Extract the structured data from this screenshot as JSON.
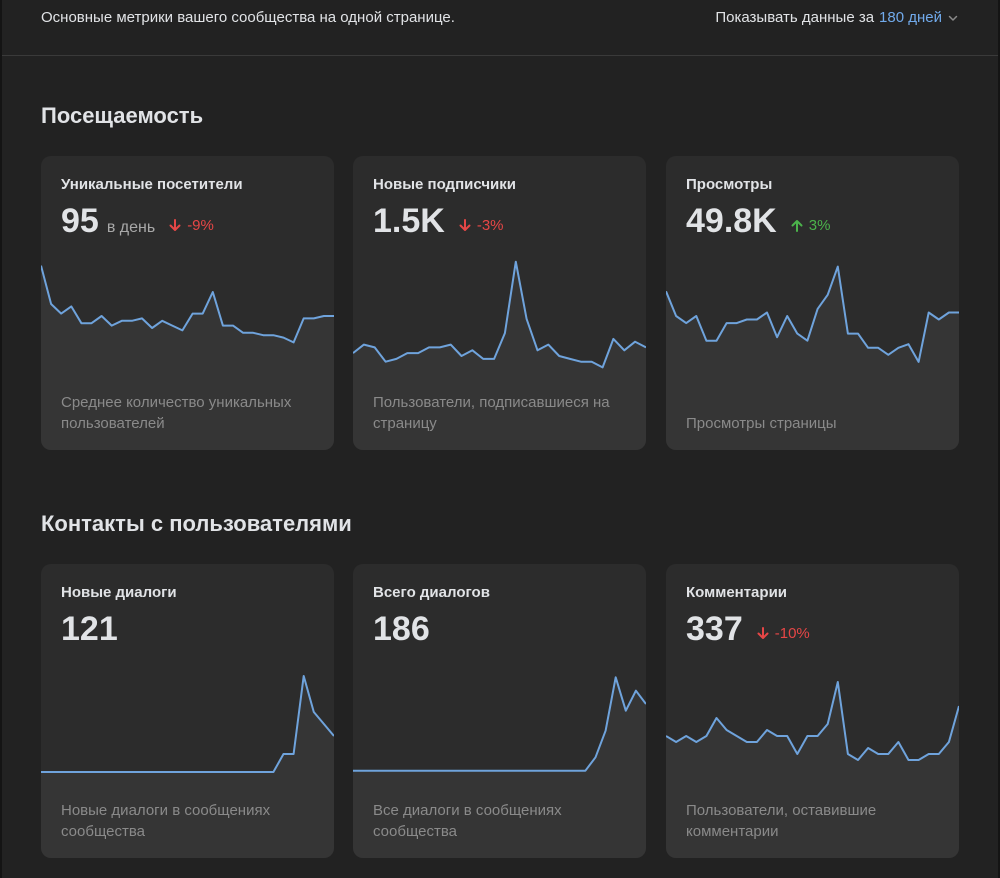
{
  "header": {
    "description": "Основные метрики вашего сообщества на одной странице.",
    "period_prefix": "Показывать данные за",
    "period_value": "180 дней",
    "period_icon": "chevron-down-icon"
  },
  "colors": {
    "accent": "#71aaeb",
    "down": "#e64646",
    "up": "#4bb34b",
    "line": "#6fa3dc"
  },
  "sections": [
    {
      "title": "Посещаемость",
      "cards": [
        {
          "title": "Уникальные посетители",
          "value": "95",
          "unit": "в день",
          "delta": "-9%",
          "direction": "down",
          "description": "Среднее количество уникальных пользователей"
        },
        {
          "title": "Новые подписчики",
          "value": "1.5K",
          "unit": "",
          "delta": "-3%",
          "direction": "down",
          "description": "Пользователи, подписавшиеся на страницу"
        },
        {
          "title": "Просмотры",
          "value": "49.8K",
          "unit": "",
          "delta": "3%",
          "direction": "up",
          "description": "Просмотры страницы"
        }
      ]
    },
    {
      "title": "Контакты с пользователями",
      "cards": [
        {
          "title": "Новые диалоги",
          "value": "121",
          "unit": "",
          "delta": "",
          "direction": "",
          "description": "Новые диалоги в сообщениях сообщества"
        },
        {
          "title": "Всего диалогов",
          "value": "186",
          "unit": "",
          "delta": "",
          "direction": "",
          "description": "Все диалоги в сообщениях сообщества"
        },
        {
          "title": "Комментарии",
          "value": "337",
          "unit": "",
          "delta": "-10%",
          "direction": "down",
          "description": "Пользователи, оставившие комментарии"
        }
      ]
    }
  ],
  "chart_data": [
    {
      "type": "area",
      "name": "Уникальные посетители",
      "values": [
        56,
        40,
        36,
        39,
        32,
        32,
        35,
        31,
        33,
        33,
        34,
        30,
        33,
        31,
        29,
        36,
        36,
        45,
        31,
        31,
        28,
        28,
        27,
        27,
        26,
        24,
        34,
        34,
        35,
        35
      ]
    },
    {
      "type": "area",
      "name": "Новые подписчики",
      "values": [
        28,
        31,
        30,
        25,
        26,
        28,
        28,
        30,
        30,
        31,
        27,
        29,
        26,
        26,
        35,
        60,
        40,
        29,
        31,
        27,
        26,
        25,
        25,
        23,
        33,
        29,
        32,
        30
      ]
    },
    {
      "type": "area",
      "name": "Просмотры",
      "values": [
        42,
        35,
        33,
        35,
        28,
        28,
        33,
        33,
        34,
        34,
        36,
        29,
        35,
        30,
        28,
        37,
        41,
        49,
        30,
        30,
        26,
        26,
        24,
        26,
        27,
        22,
        36,
        34,
        36,
        36
      ]
    },
    {
      "type": "area",
      "name": "Новые диалоги",
      "values": [
        2,
        2,
        2,
        2,
        2,
        2,
        2,
        2,
        2,
        2,
        2,
        2,
        2,
        2,
        2,
        2,
        2,
        2,
        2,
        2,
        2,
        2,
        2,
        2,
        5,
        5,
        18,
        12,
        10,
        8
      ]
    },
    {
      "type": "area",
      "name": "Всего диалогов",
      "values": [
        2,
        2,
        2,
        2,
        2,
        2,
        2,
        2,
        2,
        2,
        2,
        2,
        2,
        2,
        2,
        2,
        2,
        2,
        2,
        2,
        2,
        2,
        2,
        2,
        4,
        8,
        16,
        11,
        14,
        12
      ]
    },
    {
      "type": "area",
      "name": "Комментарии",
      "values": [
        13,
        12,
        13,
        12,
        13,
        16,
        14,
        13,
        12,
        12,
        14,
        13,
        13,
        10,
        13,
        13,
        15,
        22,
        10,
        9,
        11,
        10,
        10,
        12,
        9,
        9,
        10,
        10,
        12,
        18
      ]
    }
  ]
}
